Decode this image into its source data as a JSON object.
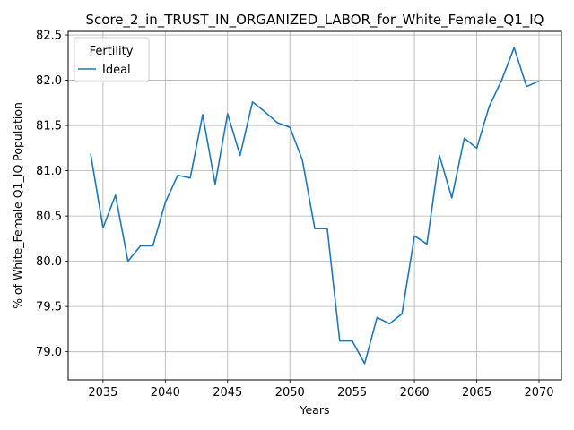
{
  "chart_data": {
    "type": "line",
    "title": "Score_2_in_TRUST_IN_ORGANIZED_LABOR_for_White_Female_Q1_IQ",
    "xlabel": "Years",
    "ylabel": "% of White_Female Q1_IQ Population",
    "xlim": [
      2032.2,
      2071.8
    ],
    "ylim": [
      78.69,
      82.54
    ],
    "xticks": [
      2035,
      2040,
      2045,
      2050,
      2055,
      2060,
      2065,
      2070
    ],
    "xtick_labels": [
      "2035",
      "2040",
      "2045",
      "2050",
      "2055",
      "2060",
      "2065",
      "2070"
    ],
    "yticks": [
      79.0,
      79.5,
      80.0,
      80.5,
      81.0,
      81.5,
      82.0,
      82.5
    ],
    "ytick_labels": [
      "79.0",
      "79.5",
      "80.0",
      "80.5",
      "81.0",
      "81.5",
      "82.0",
      "82.5"
    ],
    "grid": true,
    "legend": {
      "title": "Fertility",
      "placement": "top-left"
    },
    "series": [
      {
        "name": "Ideal",
        "color": "#1f77b4",
        "x": [
          2034,
          2035,
          2036,
          2037,
          2038,
          2039,
          2040,
          2041,
          2042,
          2043,
          2044,
          2045,
          2046,
          2047,
          2048,
          2049,
          2050,
          2051,
          2052,
          2053,
          2054,
          2055,
          2056,
          2057,
          2058,
          2059,
          2060,
          2061,
          2062,
          2063,
          2064,
          2065,
          2066,
          2067,
          2068,
          2069,
          2070
        ],
        "y": [
          81.19,
          80.37,
          80.73,
          80.0,
          80.17,
          80.17,
          80.65,
          80.95,
          80.92,
          81.62,
          80.85,
          81.63,
          81.17,
          81.76,
          81.65,
          81.53,
          81.48,
          81.12,
          80.36,
          80.36,
          79.12,
          79.12,
          78.87,
          79.38,
          79.31,
          79.42,
          80.28,
          80.19,
          81.17,
          80.7,
          81.36,
          81.25,
          81.71,
          82.0,
          82.36,
          81.93,
          81.99
        ]
      }
    ]
  }
}
